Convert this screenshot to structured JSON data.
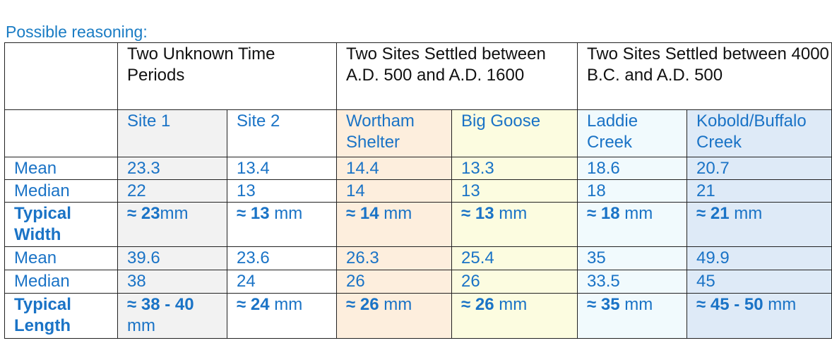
{
  "caption": "Possible reasoning:",
  "groups": [
    "Two Unknown Time Periods",
    "Two Sites Settled between\nA.D. 500 and A.D. 1600",
    "Two Sites Settled between 4000 B.C. and A.D. 500"
  ],
  "sites": [
    "Site 1",
    "Site 2",
    "Wortham Shelter",
    "Big Goose",
    "Laddie Creek",
    "Kobold/Buffalo Creek"
  ],
  "rows": {
    "width_mean": {
      "label": "Mean",
      "values": [
        "23.3",
        "13.4",
        "14.4",
        "13.3",
        "18.6",
        "20.7"
      ]
    },
    "width_median": {
      "label": "Median",
      "values": [
        "22",
        "13",
        "14",
        "13",
        "18",
        "21"
      ]
    },
    "width_typical": {
      "label": "Typical Width",
      "values": [
        {
          "approx": "≈ 23",
          "unit": "mm"
        },
        {
          "approx": "≈ 13",
          "unit": " mm"
        },
        {
          "approx": "≈ 14",
          "unit": " mm"
        },
        {
          "approx": "≈ 13",
          "unit": " mm"
        },
        {
          "approx": "≈ 18",
          "unit": " mm"
        },
        {
          "approx": "≈ 21",
          "unit": " mm"
        }
      ]
    },
    "length_mean": {
      "label": "Mean",
      "values": [
        "39.6",
        "23.6",
        "26.3",
        "25.4",
        "35",
        "49.9"
      ]
    },
    "length_median": {
      "label": "Median",
      "values": [
        "38",
        "24",
        "26",
        "26",
        "33.5",
        "45"
      ]
    },
    "length_typical": {
      "label": "Typical Length",
      "values": [
        {
          "approx": "≈ 38 - 40",
          "unit": " mm"
        },
        {
          "approx": "≈ 24",
          "unit": " mm"
        },
        {
          "approx": "≈ 26",
          "unit": " mm"
        },
        {
          "approx": "≈ 26",
          "unit": " mm"
        },
        {
          "approx": "≈ 35",
          "unit": " mm"
        },
        {
          "approx": "≈ 45 - 50",
          "unit": " mm"
        }
      ]
    }
  },
  "colors": {
    "text_blue": "#1a73c6",
    "site1_bg": "#f2f2f2",
    "wortham_bg": "#fdeedd",
    "biggoose_bg": "#fcfce0",
    "laddie_bg": "#f1fafd",
    "kobold_bg": "#deeaf7"
  }
}
